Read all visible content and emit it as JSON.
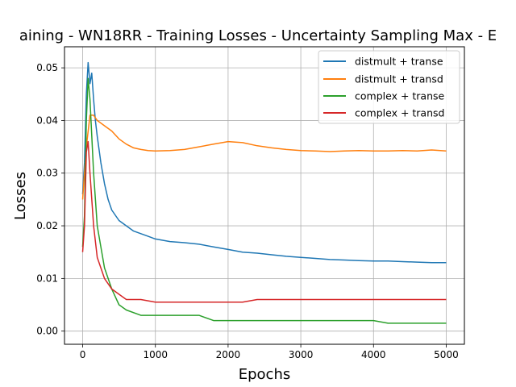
{
  "chart_data": {
    "type": "line",
    "title": "aining - WN18RR - Training Losses - Uncertainty Sampling Max - E",
    "xlabel": "Epochs",
    "ylabel": "Losses",
    "xlim": [
      -250,
      5250
    ],
    "ylim": [
      -0.0025,
      0.054
    ],
    "x_ticks": [
      0,
      1000,
      2000,
      3000,
      4000,
      5000
    ],
    "y_ticks": [
      0.0,
      0.01,
      0.02,
      0.03,
      0.04,
      0.05
    ],
    "y_tick_labels": [
      "0.00",
      "0.01",
      "0.02",
      "0.03",
      "0.04",
      "0.05"
    ],
    "grid": true,
    "legend_position": "top-right",
    "series": [
      {
        "name": "distmult + transe",
        "color": "#1f77b4",
        "x": [
          0,
          25,
          50,
          75,
          100,
          125,
          150,
          175,
          200,
          250,
          300,
          350,
          400,
          450,
          500,
          600,
          700,
          800,
          900,
          1000,
          1200,
          1400,
          1600,
          1800,
          2000,
          2200,
          2400,
          2600,
          2800,
          3000,
          3200,
          3400,
          3600,
          3800,
          4000,
          4200,
          4400,
          4600,
          4800,
          5000
        ],
        "y": [
          0.026,
          0.032,
          0.045,
          0.051,
          0.047,
          0.049,
          0.044,
          0.04,
          0.037,
          0.032,
          0.028,
          0.025,
          0.023,
          0.022,
          0.021,
          0.02,
          0.019,
          0.0185,
          0.018,
          0.0175,
          0.017,
          0.0168,
          0.0165,
          0.016,
          0.0155,
          0.015,
          0.0148,
          0.0145,
          0.0142,
          0.014,
          0.0138,
          0.0136,
          0.0135,
          0.0134,
          0.0133,
          0.0133,
          0.0132,
          0.0131,
          0.013,
          0.013
        ]
      },
      {
        "name": "distmult + transd",
        "color": "#ff7f0e",
        "x": [
          0,
          50,
          100,
          150,
          200,
          300,
          400,
          500,
          600,
          700,
          800,
          900,
          1000,
          1200,
          1400,
          1600,
          1800,
          2000,
          2200,
          2400,
          2600,
          2800,
          3000,
          3200,
          3400,
          3600,
          3800,
          4000,
          4200,
          4400,
          4600,
          4800,
          5000
        ],
        "y": [
          0.025,
          0.035,
          0.041,
          0.041,
          0.04,
          0.039,
          0.038,
          0.0365,
          0.0355,
          0.0348,
          0.0345,
          0.0343,
          0.0342,
          0.0343,
          0.0345,
          0.035,
          0.0355,
          0.036,
          0.0358,
          0.0352,
          0.0348,
          0.0345,
          0.0343,
          0.0342,
          0.0341,
          0.0342,
          0.0343,
          0.0342,
          0.0342,
          0.0343,
          0.0342,
          0.0344,
          0.0342
        ]
      },
      {
        "name": "complex + transe",
        "color": "#2ca02c",
        "x": [
          0,
          25,
          50,
          75,
          100,
          150,
          200,
          300,
          400,
          500,
          600,
          800,
          1000,
          1200,
          1400,
          1600,
          1800,
          2000,
          2200,
          2400,
          2600,
          2800,
          3000,
          3200,
          3400,
          3600,
          3800,
          4000,
          4200,
          4400,
          4600,
          4800,
          5000
        ],
        "y": [
          0.016,
          0.022,
          0.04,
          0.048,
          0.044,
          0.03,
          0.02,
          0.012,
          0.008,
          0.005,
          0.004,
          0.003,
          0.003,
          0.003,
          0.003,
          0.003,
          0.002,
          0.002,
          0.002,
          0.002,
          0.002,
          0.002,
          0.002,
          0.002,
          0.002,
          0.002,
          0.002,
          0.002,
          0.0015,
          0.0015,
          0.0015,
          0.0015,
          0.0015
        ]
      },
      {
        "name": "complex + transd",
        "color": "#d62728",
        "x": [
          0,
          25,
          50,
          75,
          100,
          150,
          200,
          300,
          400,
          500,
          600,
          800,
          1000,
          1200,
          1400,
          1600,
          1800,
          2000,
          2200,
          2400,
          2600,
          2800,
          3000,
          3200,
          3400,
          3600,
          3800,
          4000,
          4200,
          4400,
          4600,
          4800,
          5000
        ],
        "y": [
          0.015,
          0.02,
          0.034,
          0.036,
          0.03,
          0.02,
          0.014,
          0.01,
          0.008,
          0.007,
          0.006,
          0.006,
          0.0055,
          0.0055,
          0.0055,
          0.0055,
          0.0055,
          0.0055,
          0.0055,
          0.006,
          0.006,
          0.006,
          0.006,
          0.006,
          0.006,
          0.006,
          0.006,
          0.006,
          0.006,
          0.006,
          0.006,
          0.006,
          0.006
        ]
      }
    ]
  }
}
